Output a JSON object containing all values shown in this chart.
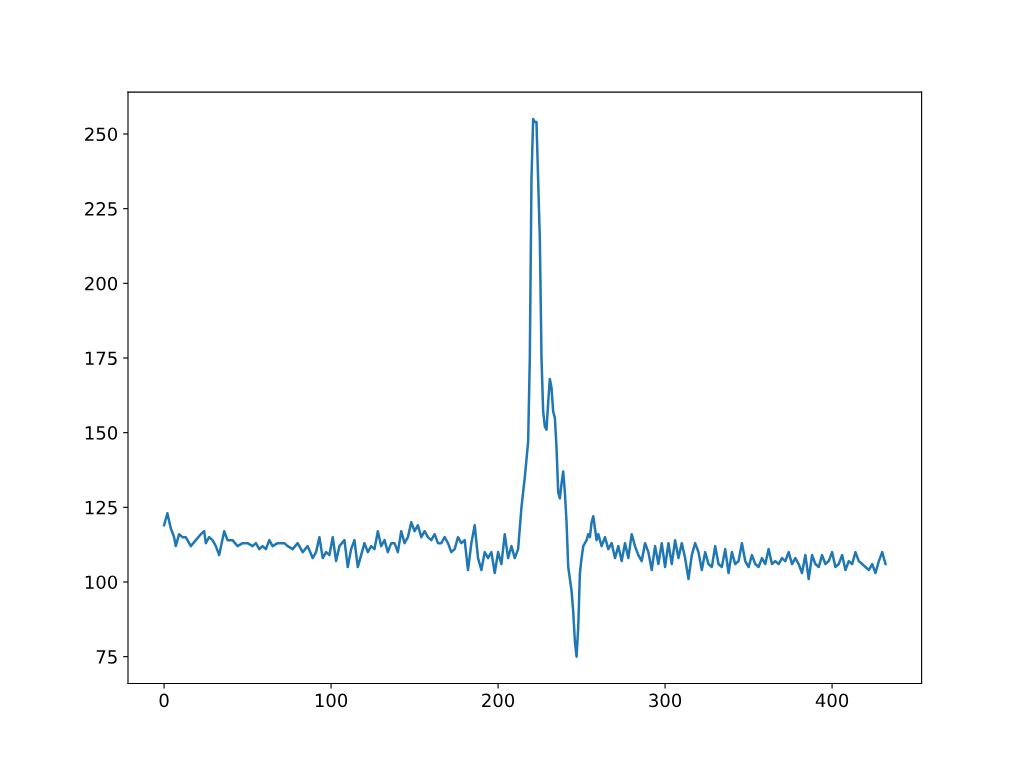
{
  "chart_data": {
    "type": "line",
    "xlim": [
      -21.6,
      453.6
    ],
    "xticks": [
      0,
      100,
      200,
      300,
      400
    ],
    "ylim": [
      66,
      264
    ],
    "yticks": [
      75,
      100,
      125,
      150,
      175,
      200,
      225,
      250
    ],
    "grid": false,
    "marker": "none",
    "line_style": "solid",
    "series": [
      {
        "color": "#1f77b4",
        "x": [
          0,
          2,
          4,
          6,
          7,
          9,
          11,
          13,
          16,
          19,
          22,
          24,
          25,
          27,
          29,
          31,
          33,
          36,
          38,
          41,
          44,
          47,
          50,
          53,
          55,
          57,
          59,
          61,
          63,
          65,
          68,
          72,
          74,
          77,
          80,
          83,
          86,
          89,
          91,
          93,
          95,
          97,
          99,
          101,
          103,
          105,
          108,
          110,
          112,
          114,
          116,
          118,
          120,
          122,
          124,
          126,
          128,
          130,
          132,
          134,
          136,
          138,
          140,
          142,
          144,
          146,
          148,
          150,
          152,
          154,
          156,
          158,
          160,
          162,
          164,
          166,
          168,
          170,
          172,
          174,
          176,
          178,
          180,
          182,
          184,
          186,
          188,
          190,
          192,
          194,
          196,
          198,
          200,
          202,
          204,
          206,
          208,
          210,
          212,
          214,
          216,
          218,
          219,
          220,
          221,
          222,
          223,
          225,
          226,
          227,
          228,
          229,
          230,
          231,
          232,
          233,
          234,
          235,
          236,
          237,
          238,
          239,
          240,
          241,
          242,
          243,
          244,
          245,
          246,
          247,
          248,
          249,
          250,
          251,
          253,
          254,
          255,
          256,
          257,
          258,
          259,
          260,
          262,
          264,
          266,
          268,
          270,
          272,
          274,
          276,
          278,
          280,
          282,
          284,
          286,
          288,
          290,
          292,
          294,
          296,
          298,
          300,
          302,
          304,
          306,
          308,
          310,
          312,
          314,
          316,
          318,
          320,
          322,
          324,
          326,
          328,
          330,
          332,
          334,
          336,
          338,
          340,
          342,
          344,
          346,
          348,
          350,
          352,
          354,
          356,
          358,
          360,
          362,
          364,
          366,
          368,
          370,
          372,
          374,
          376,
          378,
          380,
          382,
          384,
          386,
          388,
          390,
          392,
          394,
          396,
          398,
          400,
          402,
          404,
          406,
          408,
          410,
          412,
          414,
          416,
          418,
          420,
          422,
          424,
          426,
          428,
          430,
          432
        ],
        "values": [
          119,
          123,
          118,
          115,
          112,
          116,
          115,
          115,
          112,
          114,
          116,
          117,
          113,
          115,
          114,
          112,
          109,
          117,
          114,
          114,
          112,
          113,
          113,
          112,
          113,
          111,
          112,
          111,
          114,
          112,
          113,
          113,
          112,
          111,
          113,
          110,
          112,
          108,
          110,
          115,
          108,
          110,
          109,
          115,
          107,
          112,
          114,
          105,
          111,
          114,
          105,
          109,
          113,
          110,
          112,
          111,
          117,
          112,
          114,
          110,
          113,
          113,
          110,
          117,
          113,
          115,
          120,
          117,
          119,
          115,
          117,
          115,
          114,
          116,
          113,
          113,
          115,
          113,
          110,
          111,
          115,
          113,
          114,
          104,
          113,
          119,
          108,
          104,
          110,
          108,
          110,
          103,
          110,
          106,
          116,
          108,
          112,
          108,
          111,
          125,
          135,
          147,
          175,
          235,
          255,
          254,
          254,
          215,
          175,
          157,
          152,
          151,
          160,
          168,
          165,
          157,
          155,
          145,
          130,
          128,
          133,
          137,
          130,
          120,
          105,
          101,
          97,
          90,
          80,
          75,
          85,
          103,
          108,
          112,
          114,
          116,
          115,
          120,
          122,
          118,
          114,
          116,
          112,
          115,
          111,
          113,
          108,
          112,
          107,
          113,
          108,
          116,
          112,
          109,
          107,
          113,
          110,
          104,
          112,
          106,
          113,
          105,
          113,
          106,
          114,
          108,
          113,
          108,
          101,
          109,
          113,
          110,
          104,
          110,
          106,
          105,
          112,
          106,
          105,
          111,
          103,
          110,
          106,
          107,
          113,
          107,
          105,
          109,
          106,
          105,
          108,
          106,
          111,
          106,
          107,
          106,
          108,
          107,
          110,
          106,
          108,
          106,
          103,
          109,
          101,
          109,
          106,
          105,
          109,
          106,
          107,
          110,
          105,
          106,
          109,
          104,
          107,
          106,
          110,
          107,
          106,
          105,
          104,
          106,
          103,
          107,
          110,
          106
        ]
      }
    ]
  }
}
